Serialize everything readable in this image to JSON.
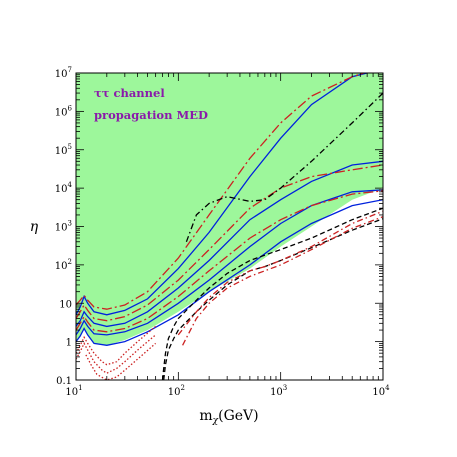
{
  "chart_data": {
    "type": "line",
    "xlabel": "mχ(GeV)",
    "xlabel_main": "m",
    "xlabel_sub": "χ",
    "xlabel_unit": "(GeV)",
    "ylabel": "η",
    "xscale": "log",
    "yscale": "log",
    "xlim": [
      10,
      10000
    ],
    "ylim": [
      0.1,
      10000000
    ],
    "grid": false,
    "legend": "none",
    "x_ticks": [
      "10",
      "10",
      "10",
      "10"
    ],
    "x_tick_exps": [
      "1",
      "2",
      "3",
      "4"
    ],
    "y_ticks": [
      "0.1",
      "1",
      "10",
      "10",
      "10",
      "10",
      "10",
      "10",
      "10"
    ],
    "y_tick_exps": [
      "",
      "",
      "",
      "2",
      "3",
      "4",
      "5",
      "6",
      "7"
    ],
    "annotations": [
      "ττ channel",
      "propagation MED"
    ],
    "colors": {
      "excluded_region": "#9df79b",
      "blue": "#0022dd",
      "red": "#cc2222",
      "black": "#000000",
      "annotation": "#8a1aaa"
    },
    "exclusion_boundary": {
      "x": [
        10,
        11,
        12,
        13,
        15,
        20,
        30,
        50,
        100,
        200,
        500,
        1000,
        2000,
        5000,
        10000
      ],
      "y": [
        1,
        1.4,
        2.2,
        1.5,
        0.9,
        0.8,
        1.1,
        2,
        6,
        20,
        80,
        300,
        1000,
        5000,
        10000
      ]
    },
    "series": [
      {
        "style": "solid",
        "color": "blue",
        "x": [
          10,
          11,
          12,
          13,
          15,
          20,
          30,
          50,
          100,
          200,
          500,
          1000,
          2000,
          5000,
          7000
        ],
        "y": [
          5,
          8,
          15,
          10,
          6,
          5,
          6.5,
          13,
          80,
          700,
          20000,
          200000,
          1500000,
          8000000,
          10000000
        ]
      },
      {
        "style": "solid",
        "color": "blue",
        "x": [
          10,
          11,
          12,
          13,
          15,
          20,
          30,
          50,
          100,
          200,
          500,
          1000,
          2000,
          5000,
          10000
        ],
        "y": [
          2.5,
          3.5,
          6,
          4.5,
          3,
          2.5,
          3,
          6,
          25,
          130,
          1500,
          5000,
          15000,
          40000,
          50000
        ]
      },
      {
        "style": "solid",
        "color": "blue",
        "x": [
          10,
          11,
          12,
          13,
          15,
          20,
          30,
          50,
          100,
          200,
          500,
          1000,
          2000,
          5000,
          10000
        ],
        "y": [
          1.5,
          2.2,
          3.5,
          2.5,
          1.6,
          1.5,
          1.8,
          3,
          10,
          40,
          300,
          1200,
          3500,
          8000,
          9000
        ]
      },
      {
        "style": "solid",
        "color": "blue",
        "x": [
          10,
          11,
          12,
          13,
          15,
          20,
          30,
          50,
          100,
          200,
          500,
          1000,
          2000,
          5000,
          10000
        ],
        "y": [
          1,
          1.4,
          2.2,
          1.5,
          0.9,
          0.8,
          1,
          1.8,
          5,
          20,
          100,
          400,
          1200,
          3500,
          5000
        ]
      },
      {
        "style": "dash-long",
        "color": "red",
        "x": [
          10,
          11,
          12,
          13,
          15,
          20,
          30,
          50,
          100,
          200,
          500,
          1000,
          2000,
          5000,
          6500
        ],
        "y": [
          9,
          12,
          16,
          12,
          8,
          7,
          9,
          20,
          150,
          2000,
          60000,
          500000,
          2500000,
          8000000,
          10000000
        ]
      },
      {
        "style": "dash-long",
        "color": "red",
        "x": [
          10,
          11,
          12,
          13,
          15,
          20,
          30,
          50,
          100,
          200,
          500,
          1000,
          2000,
          5000,
          10000
        ],
        "y": [
          4,
          6,
          9,
          6.5,
          4,
          3.5,
          4.5,
          9,
          40,
          250,
          3000,
          10000,
          20000,
          30000,
          40000
        ]
      },
      {
        "style": "dash-long",
        "color": "red",
        "x": [
          10,
          11,
          12,
          13,
          15,
          20,
          30,
          50,
          100,
          200,
          500,
          1000,
          2000,
          5000,
          10000
        ],
        "y": [
          2,
          3,
          4.5,
          3.2,
          2,
          1.8,
          2.2,
          4,
          15,
          70,
          500,
          1500,
          3500,
          7000,
          8500
        ]
      },
      {
        "style": "dash-dot",
        "color": "black",
        "x": [
          120,
          150,
          200,
          300,
          500,
          700,
          1000,
          2000,
          5000,
          10000
        ],
        "y": [
          400,
          2000,
          4000,
          6000,
          4500,
          5000,
          10000,
          50000,
          500000,
          3000000
        ]
      },
      {
        "style": "dash",
        "color": "black",
        "x": [
          70,
          72,
          75,
          80,
          90,
          100,
          150,
          200,
          300,
          500,
          700,
          1000,
          2000,
          5000,
          10000
        ],
        "y": [
          0.1,
          0.2,
          0.5,
          1.2,
          2.5,
          4,
          12,
          25,
          60,
          130,
          180,
          250,
          500,
          1500,
          3000
        ]
      },
      {
        "style": "dash",
        "color": "black",
        "x": [
          72,
          75,
          80,
          90,
          100,
          150,
          200,
          300,
          500,
          700,
          1000,
          2000,
          5000,
          10000
        ],
        "y": [
          0.1,
          0.25,
          0.6,
          1.2,
          2,
          6,
          12,
          30,
          70,
          90,
          130,
          280,
          800,
          1600
        ]
      },
      {
        "style": "dash-dot",
        "color": "red",
        "x": [
          100,
          150,
          200,
          300,
          500,
          700,
          1000,
          2000,
          5000,
          10000
        ],
        "y": [
          1.5,
          6,
          14,
          35,
          70,
          90,
          130,
          300,
          1200,
          2500
        ]
      },
      {
        "style": "dash-dot",
        "color": "red",
        "x": [
          110,
          150,
          200,
          300,
          500,
          700,
          1000,
          2000,
          5000,
          10000
        ],
        "y": [
          0.8,
          4,
          10,
          25,
          50,
          70,
          100,
          250,
          900,
          1800
        ]
      },
      {
        "style": "dotted",
        "color": "red",
        "x": [
          10,
          11,
          12,
          13,
          15,
          18,
          20,
          25,
          30,
          40,
          60
        ],
        "y": [
          0.5,
          0.8,
          1.3,
          0.9,
          0.5,
          0.3,
          0.25,
          0.3,
          0.5,
          1,
          2.5
        ]
      },
      {
        "style": "dotted",
        "color": "red",
        "x": [
          10,
          11,
          12,
          13,
          15,
          18,
          20,
          25,
          30,
          40,
          60
        ],
        "y": [
          0.35,
          0.55,
          0.9,
          0.6,
          0.3,
          0.18,
          0.15,
          0.2,
          0.3,
          0.6,
          1.5
        ]
      },
      {
        "style": "dotted",
        "color": "red",
        "x": [
          12.5,
          14,
          16,
          20,
          25,
          30,
          40,
          60
        ],
        "y": [
          0.45,
          0.25,
          0.14,
          0.1,
          0.12,
          0.18,
          0.35,
          0.9
        ]
      }
    ]
  }
}
